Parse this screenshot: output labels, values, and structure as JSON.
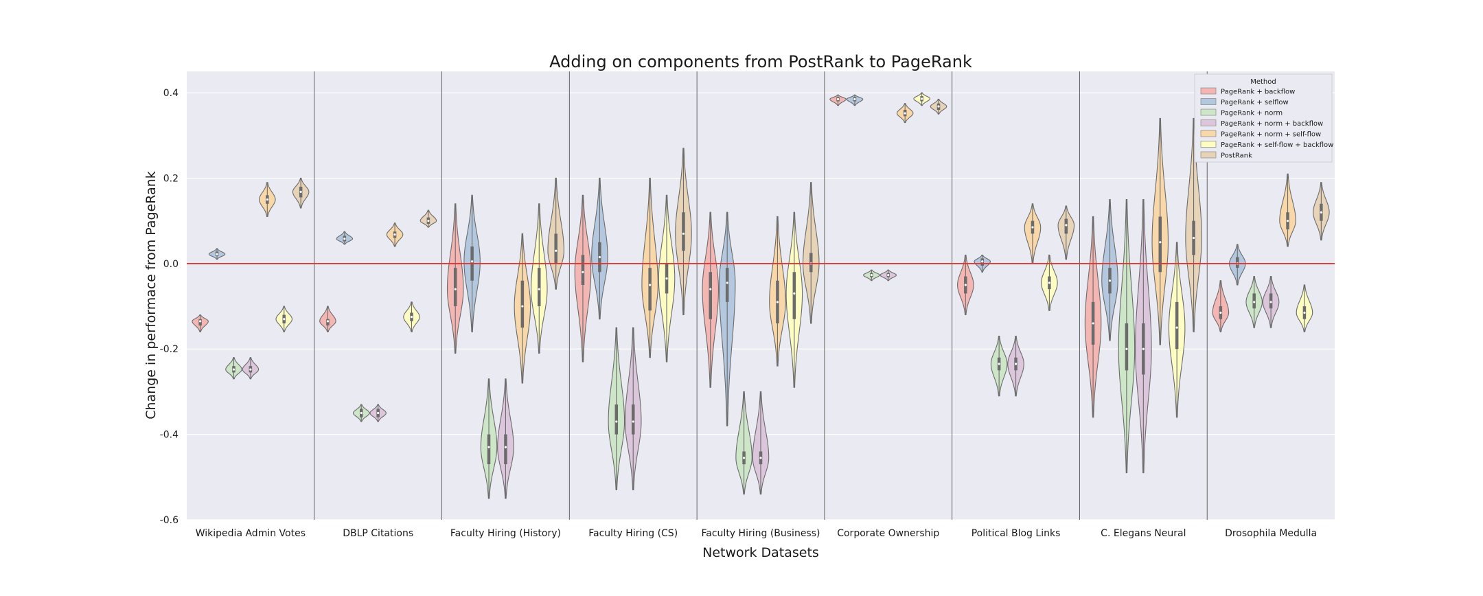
{
  "chart_data": {
    "type": "violin",
    "title": "Adding on components from PostRank to PageRank",
    "xlabel": "Network Datasets",
    "ylabel": "Change in performace from PageRank",
    "ylim": [
      -0.6,
      0.45
    ],
    "yticks": [
      0.4,
      0.2,
      0.0,
      -0.2,
      -0.4,
      -0.6
    ],
    "ytick_labels": [
      "0.4",
      "0.2",
      "0.0",
      "-0.2",
      "-0.4",
      "-0.6"
    ],
    "reference_line": 0.0,
    "reference_line_color": "#e3342f",
    "grid": true,
    "legend": {
      "title": "Method",
      "position": "top-right"
    },
    "categories": [
      "Wikipedia Admin Votes",
      "DBLP Citations",
      "Faculty Hiring (History)",
      "Faculty Hiring (CS)",
      "Faculty Hiring (Business)",
      "Corporate Ownership",
      "Political Blog Links",
      "C. Elegans Neural",
      "Drosophila Medulla"
    ],
    "series": [
      {
        "name": "PageRank + backflow",
        "color": "#f4b6b3",
        "values": [
          {
            "min": -0.16,
            "max": -0.12,
            "q1": -0.145,
            "q3": -0.13,
            "median": -0.135
          },
          {
            "min": -0.16,
            "max": -0.1,
            "q1": -0.145,
            "q3": -0.13,
            "median": -0.135
          },
          {
            "min": -0.21,
            "max": 0.14,
            "q1": -0.1,
            "q3": -0.01,
            "median": -0.06
          },
          {
            "min": -0.23,
            "max": 0.16,
            "q1": -0.05,
            "q3": 0.02,
            "median": -0.02
          },
          {
            "min": -0.29,
            "max": 0.12,
            "q1": -0.13,
            "q3": -0.02,
            "median": -0.06
          },
          {
            "min": 0.37,
            "max": 0.395,
            "q1": 0.38,
            "q3": 0.39,
            "median": 0.385
          },
          {
            "min": -0.12,
            "max": 0.02,
            "q1": -0.07,
            "q3": -0.03,
            "median": -0.05
          },
          {
            "min": -0.36,
            "max": 0.11,
            "q1": -0.19,
            "q3": -0.09,
            "median": -0.14
          },
          {
            "min": -0.16,
            "max": -0.04,
            "q1": -0.13,
            "q3": -0.1,
            "median": -0.115
          }
        ]
      },
      {
        "name": "PageRank + selflow",
        "color": "#b3c7de",
        "values": [
          {
            "min": 0.01,
            "max": 0.035,
            "q1": 0.018,
            "q3": 0.028,
            "median": 0.022
          },
          {
            "min": 0.045,
            "max": 0.075,
            "q1": 0.052,
            "q3": 0.065,
            "median": 0.058
          },
          {
            "min": -0.16,
            "max": 0.16,
            "q1": -0.04,
            "q3": 0.04,
            "median": 0.005
          },
          {
            "min": -0.13,
            "max": 0.2,
            "q1": -0.02,
            "q3": 0.05,
            "median": 0.015
          },
          {
            "min": -0.38,
            "max": 0.12,
            "q1": -0.09,
            "q3": -0.01,
            "median": -0.045
          },
          {
            "min": 0.37,
            "max": 0.395,
            "q1": 0.38,
            "q3": 0.39,
            "median": 0.385
          },
          {
            "min": -0.02,
            "max": 0.02,
            "q1": -0.005,
            "q3": 0.012,
            "median": 0.005
          },
          {
            "min": -0.18,
            "max": 0.15,
            "q1": -0.07,
            "q3": -0.01,
            "median": -0.04
          },
          {
            "min": -0.05,
            "max": 0.045,
            "q1": -0.01,
            "q3": 0.015,
            "median": 0.0
          }
        ]
      },
      {
        "name": "PageRank + norm",
        "color": "#cde6c7",
        "values": [
          {
            "min": -0.27,
            "max": -0.22,
            "q1": -0.255,
            "q3": -0.24,
            "median": -0.248
          },
          {
            "min": -0.37,
            "max": -0.33,
            "q1": -0.36,
            "q3": -0.34,
            "median": -0.35
          },
          {
            "min": -0.55,
            "max": -0.27,
            "q1": -0.47,
            "q3": -0.4,
            "median": -0.43
          },
          {
            "min": -0.53,
            "max": -0.15,
            "q1": -0.4,
            "q3": -0.33,
            "median": -0.37
          },
          {
            "min": -0.54,
            "max": -0.3,
            "q1": -0.47,
            "q3": -0.44,
            "median": -0.455
          },
          {
            "min": -0.04,
            "max": -0.015,
            "q1": -0.032,
            "q3": -0.022,
            "median": -0.027
          },
          {
            "min": -0.31,
            "max": -0.17,
            "q1": -0.25,
            "q3": -0.22,
            "median": -0.235
          },
          {
            "min": -0.49,
            "max": 0.15,
            "q1": -0.25,
            "q3": -0.14,
            "median": -0.2
          },
          {
            "min": -0.15,
            "max": -0.03,
            "q1": -0.105,
            "q3": -0.07,
            "median": -0.09
          }
        ]
      },
      {
        "name": "PageRank + norm + backflow",
        "color": "#dcc6dc",
        "values": [
          {
            "min": -0.27,
            "max": -0.22,
            "q1": -0.255,
            "q3": -0.24,
            "median": -0.248
          },
          {
            "min": -0.37,
            "max": -0.33,
            "q1": -0.36,
            "q3": -0.34,
            "median": -0.35
          },
          {
            "min": -0.55,
            "max": -0.27,
            "q1": -0.47,
            "q3": -0.4,
            "median": -0.43
          },
          {
            "min": -0.53,
            "max": -0.15,
            "q1": -0.4,
            "q3": -0.33,
            "median": -0.37
          },
          {
            "min": -0.54,
            "max": -0.3,
            "q1": -0.47,
            "q3": -0.44,
            "median": -0.455
          },
          {
            "min": -0.04,
            "max": -0.015,
            "q1": -0.032,
            "q3": -0.022,
            "median": -0.027
          },
          {
            "min": -0.31,
            "max": -0.17,
            "q1": -0.25,
            "q3": -0.22,
            "median": -0.235
          },
          {
            "min": -0.49,
            "max": 0.15,
            "q1": -0.26,
            "q3": -0.14,
            "median": -0.2
          },
          {
            "min": -0.15,
            "max": -0.03,
            "q1": -0.105,
            "q3": -0.07,
            "median": -0.09
          }
        ]
      },
      {
        "name": "PageRank + norm + self-flow",
        "color": "#f8d7a8",
        "values": [
          {
            "min": 0.11,
            "max": 0.19,
            "q1": 0.14,
            "q3": 0.16,
            "median": 0.15
          },
          {
            "min": 0.04,
            "max": 0.095,
            "q1": 0.06,
            "q3": 0.075,
            "median": 0.068
          },
          {
            "min": -0.28,
            "max": 0.07,
            "q1": -0.15,
            "q3": -0.04,
            "median": -0.1
          },
          {
            "min": -0.22,
            "max": 0.2,
            "q1": -0.11,
            "q3": -0.01,
            "median": -0.05
          },
          {
            "min": -0.24,
            "max": 0.11,
            "q1": -0.14,
            "q3": -0.04,
            "median": -0.09
          },
          {
            "min": 0.33,
            "max": 0.375,
            "q1": 0.345,
            "q3": 0.36,
            "median": 0.352
          },
          {
            "min": 0.0,
            "max": 0.14,
            "q1": 0.07,
            "q3": 0.1,
            "median": 0.085
          },
          {
            "min": -0.19,
            "max": 0.34,
            "q1": -0.02,
            "q3": 0.11,
            "median": 0.05
          },
          {
            "min": 0.04,
            "max": 0.21,
            "q1": 0.08,
            "q3": 0.12,
            "median": 0.1
          }
        ]
      },
      {
        "name": "PageRank + self-flow + backflow",
        "color": "#fdfdc3",
        "values": [
          {
            "min": -0.16,
            "max": -0.1,
            "q1": -0.14,
            "q3": -0.12,
            "median": -0.13
          },
          {
            "min": -0.16,
            "max": -0.09,
            "q1": -0.135,
            "q3": -0.115,
            "median": -0.125
          },
          {
            "min": -0.21,
            "max": 0.14,
            "q1": -0.1,
            "q3": -0.01,
            "median": -0.06
          },
          {
            "min": -0.23,
            "max": 0.16,
            "q1": -0.07,
            "q3": 0.0,
            "median": -0.035
          },
          {
            "min": -0.29,
            "max": 0.12,
            "q1": -0.13,
            "q3": -0.02,
            "median": -0.07
          },
          {
            "min": 0.37,
            "max": 0.4,
            "q1": 0.38,
            "q3": 0.392,
            "median": 0.386
          },
          {
            "min": -0.11,
            "max": 0.02,
            "q1": -0.06,
            "q3": -0.03,
            "median": -0.045
          },
          {
            "min": -0.36,
            "max": 0.05,
            "q1": -0.2,
            "q3": -0.09,
            "median": -0.15
          },
          {
            "min": -0.16,
            "max": -0.05,
            "q1": -0.13,
            "q3": -0.1,
            "median": -0.115
          }
        ]
      },
      {
        "name": "PostRank",
        "color": "#e6d3b8",
        "values": [
          {
            "min": 0.13,
            "max": 0.2,
            "q1": 0.155,
            "q3": 0.18,
            "median": 0.168
          },
          {
            "min": 0.085,
            "max": 0.125,
            "q1": 0.093,
            "q3": 0.108,
            "median": 0.1
          },
          {
            "min": -0.06,
            "max": 0.2,
            "q1": 0.0,
            "q3": 0.07,
            "median": 0.03
          },
          {
            "min": -0.12,
            "max": 0.27,
            "q1": 0.03,
            "q3": 0.12,
            "median": 0.07
          },
          {
            "min": -0.14,
            "max": 0.19,
            "q1": -0.02,
            "q3": 0.025,
            "median": 0.0
          },
          {
            "min": 0.35,
            "max": 0.385,
            "q1": 0.36,
            "q3": 0.375,
            "median": 0.368
          },
          {
            "min": 0.01,
            "max": 0.135,
            "q1": 0.07,
            "q3": 0.105,
            "median": 0.09
          },
          {
            "min": -0.16,
            "max": 0.34,
            "q1": 0.02,
            "q3": 0.1,
            "median": 0.06
          },
          {
            "min": 0.055,
            "max": 0.19,
            "q1": 0.1,
            "q3": 0.14,
            "median": 0.12
          }
        ]
      }
    ]
  }
}
